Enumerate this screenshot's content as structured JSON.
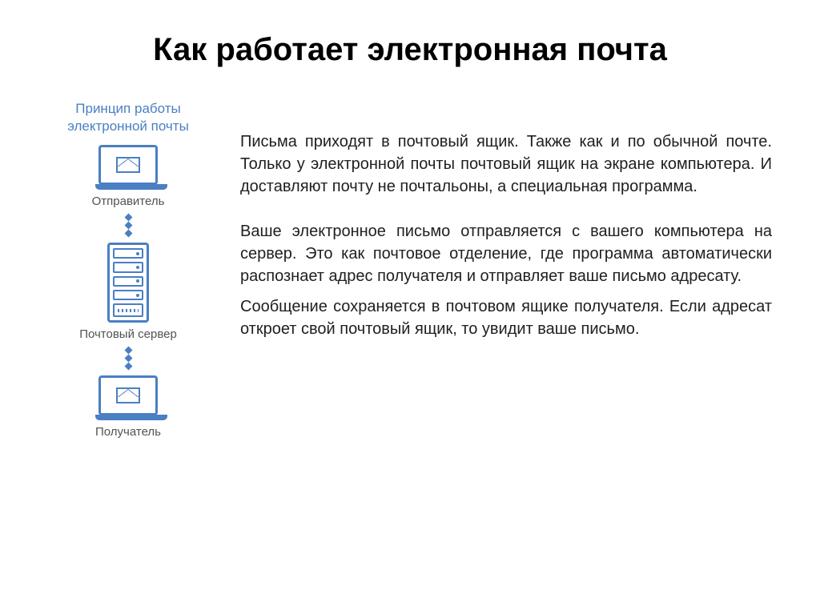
{
  "title": "Как работает электронная почта",
  "diagram": {
    "heading": "Принцип работы электронной почты",
    "accent_color": "#4a7fc4",
    "label_color": "#525252",
    "nodes": [
      {
        "type": "laptop",
        "label": "Отправитель"
      },
      {
        "type": "server",
        "label": "Почтовый сервер"
      },
      {
        "type": "laptop",
        "label": "Получатель"
      }
    ],
    "connector": {
      "diamond_count": 3,
      "color": "#4a7fc4"
    }
  },
  "paragraphs": [
    "Письма приходят в почтовый ящик. Также как и по обычной почте. Только у электронной почты почтовый ящик на экране компьютера. И доставляют почту не почтальоны, а специальная программа.",
    "Ваше электронное письмо отправляется с вашего компьютера на сервер. Это как почтовое отделение, где программа автоматически распознает адрес получателя и отправляет ваше письмо адресату.",
    "Сообщение сохраняется в почтовом ящике получателя. Если адресат откроет свой почтовый ящик, то увидит ваше письмо."
  ],
  "text_color": "#202020",
  "title_fontsize": 40,
  "body_fontsize": 20
}
